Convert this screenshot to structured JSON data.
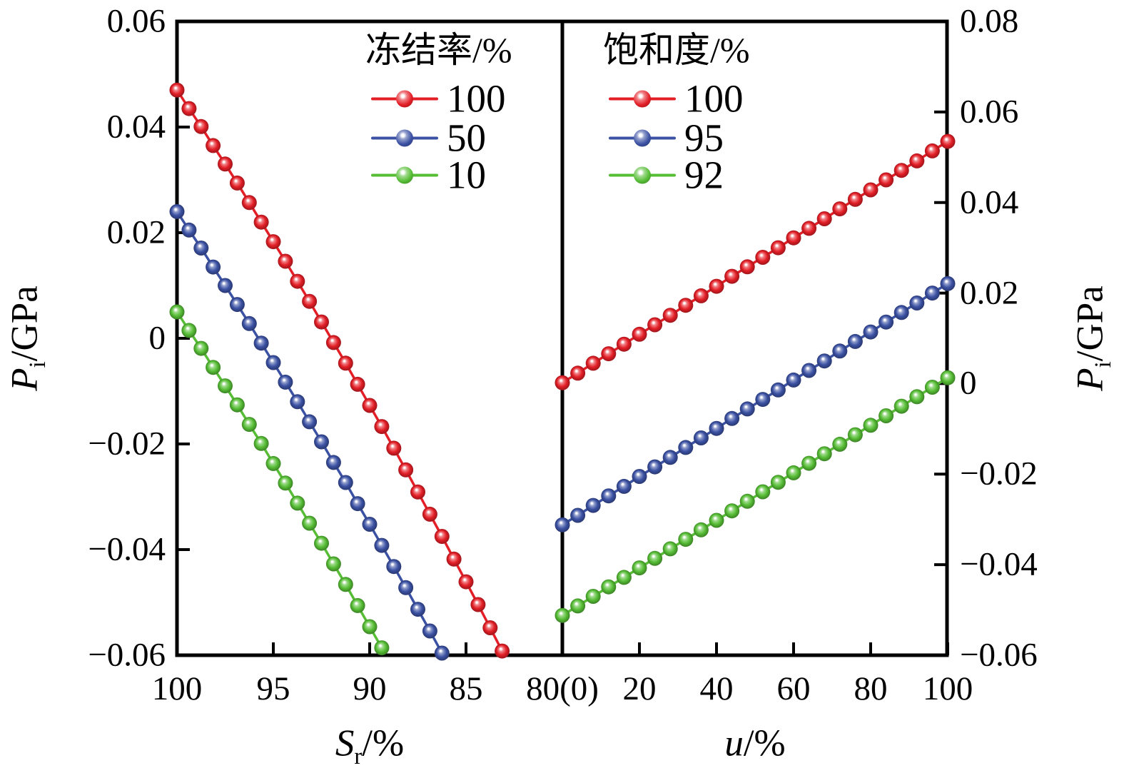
{
  "figure": {
    "background": "#ffffff",
    "axis_color": "#000000"
  },
  "axis_titles": {
    "y_left": {
      "var": "P",
      "sub": "i",
      "rest": "/GPa"
    },
    "y_right": {
      "var": "P",
      "sub": "i",
      "rest": "/GPa"
    },
    "x_left": {
      "var": "S",
      "sub": "r",
      "rest": "/%"
    },
    "x_right": {
      "var": "u",
      "sub": "",
      "rest": "/%"
    }
  },
  "legends": [
    {
      "title": "冻结率/%",
      "items": [
        {
          "label": "100",
          "color": "#e31e26"
        },
        {
          "label": "50",
          "color": "#3b51a3"
        },
        {
          "label": "10",
          "color": "#56bd35"
        }
      ]
    },
    {
      "title": "饱和度/%",
      "items": [
        {
          "label": "100",
          "color": "#e31e26"
        },
        {
          "label": "95",
          "color": "#3b51a3"
        },
        {
          "label": "92",
          "color": "#56bd35"
        }
      ]
    }
  ],
  "chart_data": {
    "type": "line",
    "marker": "sphere",
    "panels": [
      {
        "name": "freezing-rate-panel",
        "xlabel": "Sr/%",
        "ylabel": "Pi/GPa",
        "x_direction": "reversed",
        "xlim": [
          100,
          80
        ],
        "ylim": [
          -0.06,
          0.06
        ],
        "x_ticks": {
          "values": [
            100,
            95,
            90,
            85,
            80
          ],
          "labels": [
            "100",
            "95",
            "90",
            "85",
            "80(0)"
          ]
        },
        "y_ticks": {
          "side": "left",
          "values": [
            0.06,
            0.04,
            0.02,
            0,
            -0.02,
            -0.04,
            -0.06
          ],
          "labels": [
            "0.06",
            "0.04",
            "0.02",
            "0",
            "−0.02",
            "−0.04",
            "−0.06"
          ]
        },
        "legend_title": "冻结率/%",
        "series": [
          {
            "name": "100",
            "color": "#e31e26",
            "x": [
              100,
              99.375,
              98.75,
              98.125,
              97.5,
              96.875,
              96.25,
              95.625,
              95,
              94.375,
              93.75,
              93.125,
              92.5,
              91.875,
              91.25,
              90.625,
              90,
              89.375,
              88.75,
              88.125,
              87.5,
              86.875,
              86.25,
              85.625,
              85,
              84.375,
              83.75,
              83.125
            ],
            "y": [
              0.047,
              0.0435,
              0.0401,
              0.0365,
              0.033,
              0.0294,
              0.0257,
              0.022,
              0.0183,
              0.0146,
              0.0108,
              0.007,
              0.0031,
              -0.0008,
              -0.0047,
              -0.0087,
              -0.0127,
              -0.0167,
              -0.0208,
              -0.0249,
              -0.0291,
              -0.0333,
              -0.0375,
              -0.0418,
              -0.0461,
              -0.0504,
              -0.0548,
              -0.0592
            ]
          },
          {
            "name": "50",
            "color": "#3b51a3",
            "x": [
              100,
              99.375,
              98.75,
              98.125,
              97.5,
              96.875,
              96.25,
              95.625,
              95,
              94.375,
              93.75,
              93.125,
              92.5,
              91.875,
              91.25,
              90.625,
              90,
              89.375,
              88.75,
              88.125,
              87.5,
              86.875,
              86.25
            ],
            "y": [
              0.024,
              0.0205,
              0.0171,
              0.0135,
              0.01,
              0.0064,
              0.0028,
              -0.0009,
              -0.0046,
              -0.0083,
              -0.012,
              -0.0158,
              -0.0196,
              -0.0235,
              -0.0273,
              -0.0313,
              -0.0352,
              -0.0392,
              -0.0432,
              -0.0472,
              -0.0513,
              -0.0554,
              -0.0596
            ]
          },
          {
            "name": "10",
            "color": "#56bd35",
            "x": [
              100,
              99.375,
              98.75,
              98.125,
              97.5,
              96.875,
              96.25,
              95.625,
              95,
              94.375,
              93.75,
              93.125,
              92.5,
              91.875,
              91.25,
              90.625,
              90,
              89.375
            ],
            "y": [
              0.005,
              0.0015,
              -0.0019,
              -0.0055,
              -0.009,
              -0.0126,
              -0.0163,
              -0.0199,
              -0.0237,
              -0.0274,
              -0.0312,
              -0.035,
              -0.0388,
              -0.0427,
              -0.0466,
              -0.0506,
              -0.0546,
              -0.0586
            ]
          }
        ]
      },
      {
        "name": "saturation-panel",
        "xlabel": "u/%",
        "ylabel": "Pi/GPa",
        "x_direction": "normal",
        "xlim": [
          0,
          100
        ],
        "ylim": [
          -0.06,
          0.08
        ],
        "x_ticks": {
          "values": [
            20,
            40,
            60,
            80,
            100
          ],
          "labels": [
            "20",
            "40",
            "60",
            "80",
            "100"
          ]
        },
        "y_ticks": {
          "side": "right",
          "values": [
            0.08,
            0.06,
            0.04,
            0.02,
            0,
            -0.02,
            -0.04,
            -0.06
          ],
          "labels": [
            "0.08",
            "0.06",
            "0.04",
            "0.02",
            "0",
            "−0.02",
            "−0.04",
            "−0.06"
          ]
        },
        "legend_title": "饱和度/%",
        "series": [
          {
            "name": "100",
            "color": "#e31e26",
            "x": [
              0,
              4,
              8,
              12,
              16,
              20,
              24,
              28,
              32,
              36,
              40,
              44,
              48,
              52,
              56,
              60,
              64,
              68,
              72,
              76,
              80,
              84,
              88,
              92,
              96,
              100
            ],
            "y": [
              0.0002,
              0.0023,
              0.0045,
              0.0066,
              0.0087,
              0.0109,
              0.013,
              0.0151,
              0.0173,
              0.0194,
              0.0215,
              0.0237,
              0.0258,
              0.0279,
              0.03,
              0.0322,
              0.0343,
              0.0364,
              0.0386,
              0.0407,
              0.0428,
              0.045,
              0.0471,
              0.0492,
              0.0514,
              0.0535
            ]
          },
          {
            "name": "95",
            "color": "#3b51a3",
            "x": [
              0,
              4,
              8,
              12,
              16,
              20,
              24,
              28,
              32,
              36,
              40,
              44,
              48,
              52,
              56,
              60,
              64,
              68,
              72,
              76,
              80,
              84,
              88,
              92,
              96,
              100
            ],
            "y": [
              -0.0312,
              -0.0291,
              -0.0269,
              -0.0248,
              -0.0227,
              -0.0205,
              -0.0184,
              -0.0163,
              -0.0141,
              -0.012,
              -0.0099,
              -0.0077,
              -0.0056,
              -0.0035,
              -0.0014,
              0.0008,
              0.0029,
              0.005,
              0.0072,
              0.0093,
              0.0114,
              0.0136,
              0.0157,
              0.0178,
              0.02,
              0.0221
            ]
          },
          {
            "name": "92",
            "color": "#56bd35",
            "x": [
              0,
              4,
              8,
              12,
              16,
              20,
              24,
              28,
              32,
              36,
              40,
              44,
              48,
              52,
              56,
              60,
              64,
              68,
              72,
              76,
              80,
              84,
              88,
              92,
              96,
              100
            ],
            "y": [
              -0.0512,
              -0.0491,
              -0.047,
              -0.0449,
              -0.0428,
              -0.0407,
              -0.0386,
              -0.0365,
              -0.0344,
              -0.0323,
              -0.0302,
              -0.0281,
              -0.026,
              -0.0239,
              -0.0218,
              -0.0197,
              -0.0176,
              -0.0155,
              -0.0134,
              -0.0113,
              -0.0092,
              -0.0071,
              -0.005,
              -0.0029,
              -0.0008,
              0.0013
            ]
          }
        ]
      }
    ]
  }
}
